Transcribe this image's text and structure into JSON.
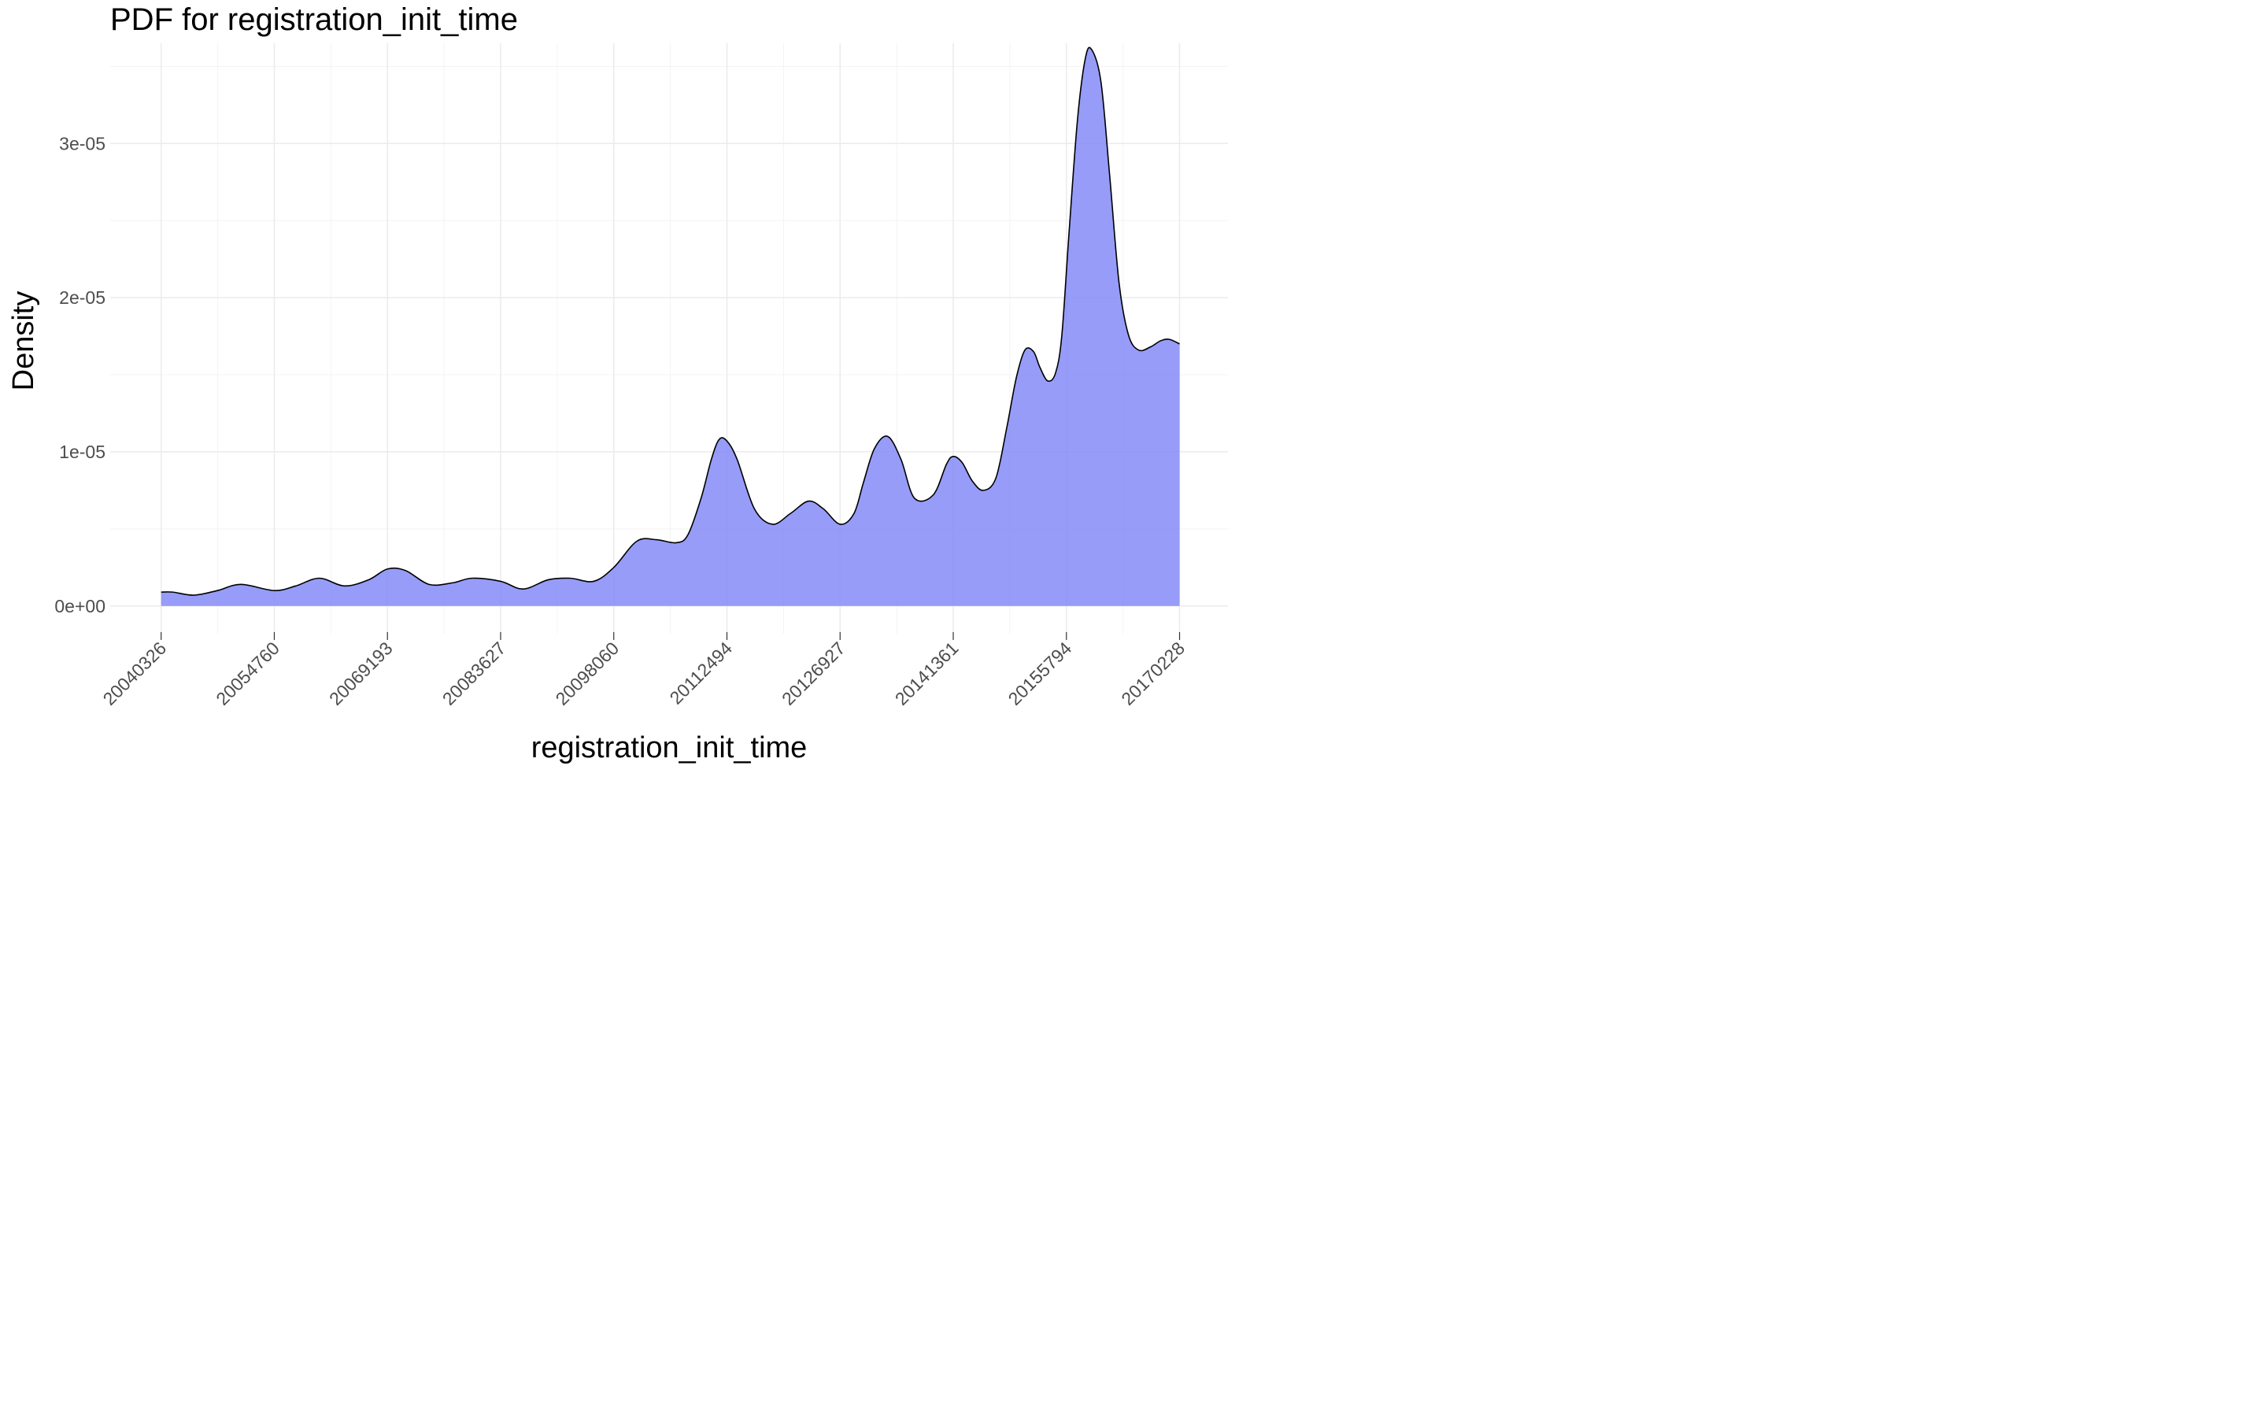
{
  "chart_data": {
    "type": "area",
    "title": "PDF for registration_init_time",
    "xlabel": "registration_init_time",
    "ylabel": "Density",
    "x_ticks": [
      20040326,
      20054760,
      20069193,
      20083627,
      20098060,
      20112494,
      20126927,
      20141361,
      20155794,
      20170228
    ],
    "x_tick_labels": [
      "20040326",
      "20054760",
      "20069193",
      "20083627",
      "20098060",
      "20112494",
      "20126927",
      "20141361",
      "20155794",
      "20170228"
    ],
    "y_ticks": [
      0,
      1e-05,
      2e-05,
      3e-05
    ],
    "y_tick_labels": [
      "0e+00",
      "1e-05",
      "2e-05",
      "3e-05"
    ],
    "xlim": [
      20033830,
      20176400
    ],
    "ylim": [
      -1.8e-06,
      3.65e-05
    ],
    "grid": true,
    "fill_color": "#7f86f5",
    "line_color": "#000000",
    "series": [
      {
        "x": [
          20040326,
          20041800,
          20044500,
          20047500,
          20050500,
          20054760,
          20057500,
          20060500,
          20063700,
          20066800,
          20069193,
          20071500,
          20074500,
          20077500,
          20080000,
          20083627,
          20086500,
          20089700,
          20092500,
          20095500,
          20098060,
          20101000,
          20103500,
          20106000,
          20107500,
          20109200,
          20110500,
          20111500,
          20112494,
          20113800,
          20116000,
          20118300,
          20120600,
          20122900,
          20124800,
          20126927,
          20128700,
          20129900,
          20131300,
          20133000,
          20134700,
          20136400,
          20138800,
          20140500,
          20141361,
          20142500,
          20143800,
          20145200,
          20146800,
          20148200,
          20149400,
          20150500,
          20151600,
          20152400,
          20153400,
          20154400,
          20155200,
          20156100,
          20157200,
          20158200,
          20159000,
          20160200,
          20161300,
          20162500,
          20163700,
          20165000,
          20166500,
          20167800,
          20168900,
          20170228
        ],
        "y": [
          9e-07,
          9e-07,
          7e-07,
          1e-06,
          1.4e-06,
          1e-06,
          1.3e-06,
          1.8e-06,
          1.3e-06,
          1.7e-06,
          2.4e-06,
          2.3e-06,
          1.4e-06,
          1.5e-06,
          1.8e-06,
          1.6e-06,
          1.1e-06,
          1.7e-06,
          1.8e-06,
          1.6e-06,
          2.5e-06,
          4.2e-06,
          4.3e-06,
          4.1e-06,
          4.6e-06,
          7e-06,
          9.5e-06,
          1.08e-05,
          1.07e-05,
          9.5e-06,
          6.3e-06,
          5.3e-06,
          6e-06,
          6.8e-06,
          6.3e-06,
          5.3e-06,
          6e-06,
          8e-06,
          1.02e-05,
          1.1e-05,
          9.5e-06,
          7e-06,
          7.2e-06,
          9.2e-06,
          9.7e-06,
          9.3e-06,
          8.1e-06,
          7.5e-06,
          8.3e-06,
          1.16e-05,
          1.48e-05,
          1.66e-05,
          1.65e-05,
          1.55e-05,
          1.46e-05,
          1.51e-05,
          1.75e-05,
          2.4e-05,
          3.15e-05,
          3.55e-05,
          3.61e-05,
          3.4e-05,
          2.8e-05,
          2.1e-05,
          1.76e-05,
          1.66e-05,
          1.68e-05,
          1.72e-05,
          1.73e-05,
          1.7e-05
        ]
      }
    ]
  }
}
